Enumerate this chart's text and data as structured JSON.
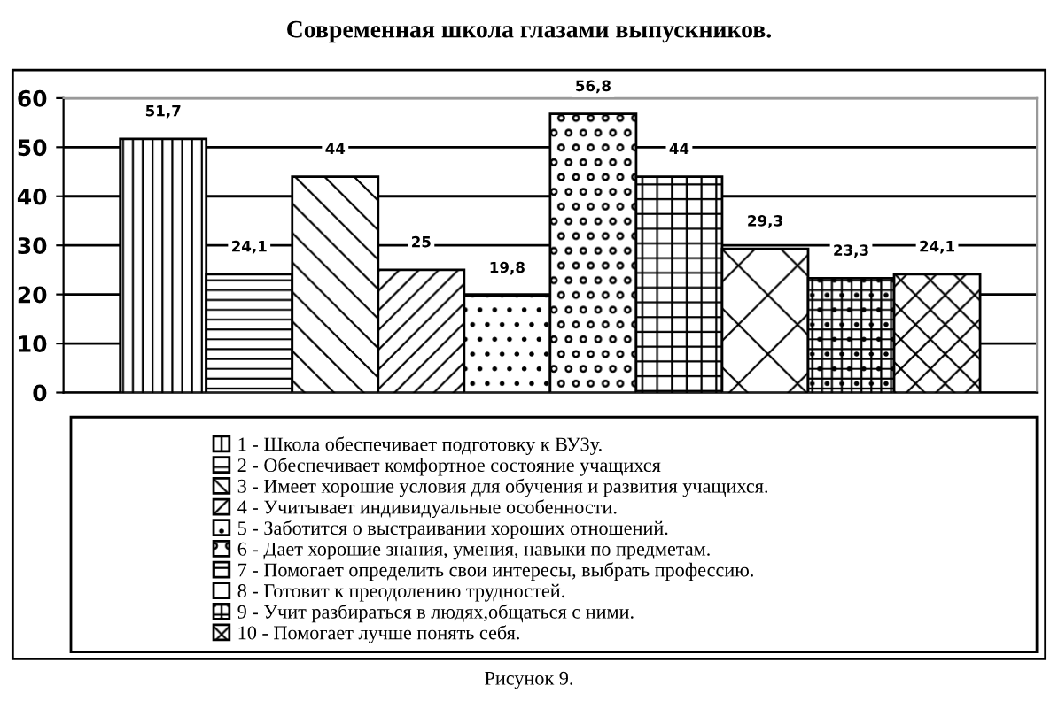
{
  "chart_data": {
    "type": "bar",
    "title": "Современная школа глазами выпускников.",
    "categories": [
      null
    ],
    "series": [
      {
        "name": "1 - Школа обеспечивает подготовку к ВУЗу.",
        "color": "#000000",
        "values": [
          51.7
        ],
        "value_labels": [
          "51,7"
        ]
      },
      {
        "name": "2 - Обеспечивает комфортное состояние учащихся",
        "color": "#000000",
        "values": [
          24.1
        ],
        "value_labels": [
          "24,1"
        ]
      },
      {
        "name": "3 - Имеет хорошие условия для обучения и развития учащихся.",
        "color": "#000000",
        "values": [
          44
        ],
        "value_labels": [
          "44"
        ]
      },
      {
        "name": "4 - Учитывает индивидуальные особенности.",
        "color": "#000000",
        "values": [
          25
        ],
        "value_labels": [
          "25"
        ]
      },
      {
        "name": "5 - Заботится о выстраивании хороших отношений.",
        "color": "#000000",
        "values": [
          19.8
        ],
        "value_labels": [
          "19,8"
        ]
      },
      {
        "name": "6 - Дает хорошие знания, умения, навыки по предметам.",
        "color": "#000000",
        "values": [
          56.8
        ],
        "value_labels": [
          "56,8"
        ]
      },
      {
        "name": "7 - Помогает определить свои интересы, выбрать профессию.",
        "color": "#000000",
        "values": [
          44
        ],
        "value_labels": [
          "44"
        ]
      },
      {
        "name": "8 - Готовит к преодолению трудностей.",
        "color": "#000000",
        "values": [
          29.3
        ],
        "value_labels": [
          "29,3"
        ]
      },
      {
        "name": "9 - Учит разбираться в людях,общаться с ними.",
        "color": "#000000",
        "values": [
          23.3
        ],
        "value_labels": [
          "23,3"
        ]
      },
      {
        "name": "10 - Помогает лучше понять себя.",
        "color": "#000000",
        "values": [
          24.1
        ],
        "value_labels": [
          "24,1"
        ]
      }
    ],
    "ylim": [
      0,
      60
    ],
    "yticks": [
      0,
      10,
      20,
      30,
      40,
      50,
      60
    ],
    "grid": "y",
    "legend": "bottom",
    "annotations": [
      "Рисунок 9."
    ]
  }
}
